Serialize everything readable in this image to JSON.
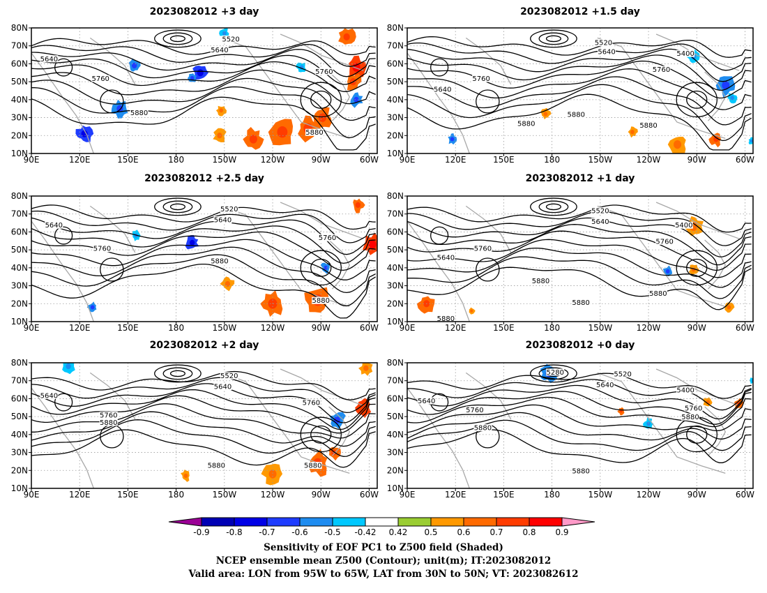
{
  "panels": [
    {
      "title": "2023082012  +3 day",
      "labels": [
        {
          "text": "5640",
          "lon": 101,
          "lat": 62
        },
        {
          "text": "5520",
          "lon": 214,
          "lat": 73
        },
        {
          "text": "5640",
          "lon": 207,
          "lat": 67
        },
        {
          "text": "5760",
          "lon": 272,
          "lat": 55
        },
        {
          "text": "5760",
          "lon": 133,
          "lat": 51
        },
        {
          "text": "5880",
          "lon": 157,
          "lat": 32
        },
        {
          "text": "5880",
          "lon": 266,
          "lat": 21
        }
      ]
    },
    {
      "title": "2023082012  +1.5 day",
      "labels": [
        {
          "text": "5520",
          "lon": 212,
          "lat": 71
        },
        {
          "text": "5640",
          "lon": 214,
          "lat": 66
        },
        {
          "text": "5400",
          "lon": 263,
          "lat": 65
        },
        {
          "text": "5760",
          "lon": 248,
          "lat": 56
        },
        {
          "text": "5760",
          "lon": 136,
          "lat": 51
        },
        {
          "text": "5640",
          "lon": 112,
          "lat": 45
        },
        {
          "text": "5880",
          "lon": 164,
          "lat": 26
        },
        {
          "text": "5880",
          "lon": 195,
          "lat": 31
        },
        {
          "text": "5880",
          "lon": 240,
          "lat": 25
        }
      ]
    },
    {
      "title": "2023082012  +2.5 day",
      "labels": [
        {
          "text": "5520",
          "lon": 213,
          "lat": 72
        },
        {
          "text": "5640",
          "lon": 209,
          "lat": 66
        },
        {
          "text": "5640",
          "lon": 104,
          "lat": 63
        },
        {
          "text": "5760",
          "lon": 134,
          "lat": 50
        },
        {
          "text": "5760",
          "lon": 274,
          "lat": 56
        },
        {
          "text": "5880",
          "lon": 207,
          "lat": 43
        },
        {
          "text": "5880",
          "lon": 270,
          "lat": 21
        }
      ]
    },
    {
      "title": "2023082012  +1 day",
      "labels": [
        {
          "text": "5520",
          "lon": 210,
          "lat": 71
        },
        {
          "text": "5640",
          "lon": 210,
          "lat": 65
        },
        {
          "text": "5400",
          "lon": 262,
          "lat": 63
        },
        {
          "text": "5760",
          "lon": 250,
          "lat": 54
        },
        {
          "text": "5760",
          "lon": 137,
          "lat": 50
        },
        {
          "text": "5640",
          "lon": 114,
          "lat": 45
        },
        {
          "text": "5880",
          "lon": 173,
          "lat": 32
        },
        {
          "text": "5880",
          "lon": 198,
          "lat": 20
        },
        {
          "text": "5880",
          "lon": 246,
          "lat": 25
        },
        {
          "text": "5880",
          "lon": 114,
          "lat": 11
        }
      ]
    },
    {
      "title": "2023082012  +2 day",
      "labels": [
        {
          "text": "5640",
          "lon": 101,
          "lat": 61
        },
        {
          "text": "5520",
          "lon": 213,
          "lat": 72
        },
        {
          "text": "5640",
          "lon": 209,
          "lat": 66
        },
        {
          "text": "5760",
          "lon": 264,
          "lat": 57
        },
        {
          "text": "5760",
          "lon": 138,
          "lat": 50
        },
        {
          "text": "5880",
          "lon": 138,
          "lat": 46
        },
        {
          "text": "5880",
          "lon": 205,
          "lat": 22
        },
        {
          "text": "5880",
          "lon": 265,
          "lat": 22
        }
      ]
    },
    {
      "title": "2023082012  +0 day",
      "labels": [
        {
          "text": "5280",
          "lon": 182,
          "lat": 74
        },
        {
          "text": "5520",
          "lon": 224,
          "lat": 73
        },
        {
          "text": "5640",
          "lon": 213,
          "lat": 67
        },
        {
          "text": "5400",
          "lon": 263,
          "lat": 64
        },
        {
          "text": "5640",
          "lon": 102,
          "lat": 58
        },
        {
          "text": "5760",
          "lon": 132,
          "lat": 53
        },
        {
          "text": "5760",
          "lon": 268,
          "lat": 54
        },
        {
          "text": "5880",
          "lon": 266,
          "lat": 49
        },
        {
          "text": "5880",
          "lon": 137,
          "lat": 43
        },
        {
          "text": "5880",
          "lon": 198,
          "lat": 19
        }
      ]
    }
  ],
  "axes": {
    "x_ticks": [
      "90E",
      "120E",
      "150E",
      "180",
      "150W",
      "120W",
      "90W",
      "60W"
    ],
    "y_ticks": [
      "80N",
      "70N",
      "60N",
      "50N",
      "40N",
      "30N",
      "20N",
      "10N"
    ],
    "lon_range": [
      90,
      305
    ],
    "lat_range": [
      10,
      80
    ],
    "x_tick_values": [
      90,
      120,
      150,
      180,
      210,
      240,
      270,
      300
    ],
    "y_tick_values": [
      80,
      70,
      60,
      50,
      40,
      30,
      20,
      10
    ]
  },
  "colorbar": {
    "ticks": [
      "-0.9",
      "-0.8",
      "-0.7",
      "-0.6",
      "-0.5",
      "-0.42",
      "0.42",
      "0.5",
      "0.6",
      "0.7",
      "0.8",
      "0.9"
    ],
    "colors": [
      "#9b0096",
      "#0000b4",
      "#0000e6",
      "#1e3cff",
      "#1e8cf0",
      "#00c8ff",
      "#ffffff",
      "#9acd32",
      "#ff9900",
      "#ff6a00",
      "#ff3c00",
      "#ff0000",
      "#ff9ac8"
    ]
  },
  "caption": {
    "line1": "Sensitivity of EOF PC1 to Z500 field (Shaded)",
    "line2": "NCEP ensemble mean Z500 (Contour); unit(m); IT:2023082012",
    "line3": "Valid area: LON from 95W to 65W, LAT from 30N to 50N; VT: 2023082612"
  },
  "chart_data": {
    "type": "heatmap",
    "panels": [
      "2023082012  +3 day",
      "2023082012  +1.5 day",
      "2023082012  +2.5 day",
      "2023082012  +1 day",
      "2023082012  +2 day",
      "2023082012  +0 day"
    ],
    "xlim": [
      "90E",
      "65W"
    ],
    "ylim": [
      "10N",
      "80N"
    ],
    "colorbar_levels": [
      -0.9,
      -0.8,
      -0.7,
      -0.6,
      -0.5,
      -0.42,
      0.42,
      0.5,
      0.6,
      0.7,
      0.8,
      0.9
    ],
    "contour_levels_labeled": [
      5280,
      5400,
      5520,
      5640,
      5760,
      5880
    ],
    "patches": [
      [
        {
          "lon": 292,
          "lat": 58,
          "r": 6,
          "v": 0.75
        },
        {
          "lon": 290,
          "lat": 50,
          "r": 5,
          "v": 0.65
        },
        {
          "lon": 271,
          "lat": 30,
          "r": 6,
          "v": 0.65
        },
        {
          "lon": 262,
          "lat": 24,
          "r": 7,
          "v": 0.6
        },
        {
          "lon": 246,
          "lat": 22,
          "r": 8,
          "v": 0.6
        },
        {
          "lon": 228,
          "lat": 18,
          "r": 6,
          "v": 0.6
        },
        {
          "lon": 208,
          "lat": 34,
          "r": 3,
          "v": 0.5
        },
        {
          "lon": 207,
          "lat": 20,
          "r": 4,
          "v": 0.5
        },
        {
          "lon": 195,
          "lat": 55,
          "r": 5,
          "v": -0.7
        },
        {
          "lon": 190,
          "lat": 52,
          "r": 3,
          "v": -0.6
        },
        {
          "lon": 154,
          "lat": 59,
          "r": 4,
          "v": -0.6
        },
        {
          "lon": 145,
          "lat": 35,
          "r": 5,
          "v": -0.55
        },
        {
          "lon": 123,
          "lat": 21,
          "r": 5,
          "v": -0.7
        },
        {
          "lon": 292,
          "lat": 40,
          "r": 4,
          "v": -0.6
        },
        {
          "lon": 258,
          "lat": 58,
          "r": 3,
          "v": -0.5
        },
        {
          "lon": 210,
          "lat": 77,
          "r": 3,
          "v": -0.5
        },
        {
          "lon": 286,
          "lat": 75,
          "r": 5,
          "v": 0.6
        }
      ],
      [
        {
          "lon": 288,
          "lat": 48,
          "r": 6,
          "v": -0.6
        },
        {
          "lon": 268,
          "lat": 64,
          "r": 4,
          "v": -0.5
        },
        {
          "lon": 292,
          "lat": 41,
          "r": 3,
          "v": -0.5
        },
        {
          "lon": 118,
          "lat": 18,
          "r": 3,
          "v": -0.55
        },
        {
          "lon": 258,
          "lat": 15,
          "r": 6,
          "v": 0.55
        },
        {
          "lon": 282,
          "lat": 18,
          "r": 4,
          "v": 0.6
        },
        {
          "lon": 176,
          "lat": 32,
          "r": 3,
          "v": 0.5
        },
        {
          "lon": 230,
          "lat": 22,
          "r": 3,
          "v": 0.5
        },
        {
          "lon": 304,
          "lat": 17,
          "r": 2,
          "v": -0.5
        }
      ],
      [
        {
          "lon": 302,
          "lat": 53,
          "r": 6,
          "v": 0.75
        },
        {
          "lon": 268,
          "lat": 22,
          "r": 8,
          "v": 0.65
        },
        {
          "lon": 240,
          "lat": 20,
          "r": 7,
          "v": 0.6
        },
        {
          "lon": 273,
          "lat": 40,
          "r": 3,
          "v": -0.6
        },
        {
          "lon": 190,
          "lat": 54,
          "r": 4,
          "v": -0.65
        },
        {
          "lon": 155,
          "lat": 58,
          "r": 3,
          "v": -0.5
        },
        {
          "lon": 128,
          "lat": 18,
          "r": 3,
          "v": -0.6
        },
        {
          "lon": 212,
          "lat": 31,
          "r": 4,
          "v": 0.5
        },
        {
          "lon": 293,
          "lat": 75,
          "r": 4,
          "v": 0.6
        }
      ],
      [
        {
          "lon": 268,
          "lat": 63,
          "r": 6,
          "v": 0.5
        },
        {
          "lon": 252,
          "lat": 38,
          "r": 3,
          "v": -0.6
        },
        {
          "lon": 102,
          "lat": 20,
          "r": 5,
          "v": 0.6
        },
        {
          "lon": 268,
          "lat": 39,
          "r": 3,
          "v": 0.5
        },
        {
          "lon": 290,
          "lat": 18,
          "r": 3,
          "v": 0.5
        },
        {
          "lon": 130,
          "lat": 16,
          "r": 2,
          "v": 0.5
        }
      ],
      [
        {
          "lon": 296,
          "lat": 55,
          "r": 5,
          "v": 0.7
        },
        {
          "lon": 280,
          "lat": 48,
          "r": 5,
          "v": -0.6
        },
        {
          "lon": 268,
          "lat": 24,
          "r": 7,
          "v": 0.6
        },
        {
          "lon": 240,
          "lat": 18,
          "r": 6,
          "v": 0.55
        },
        {
          "lon": 278,
          "lat": 30,
          "r": 4,
          "v": 0.6
        },
        {
          "lon": 113,
          "lat": 78,
          "r": 4,
          "v": -0.5
        },
        {
          "lon": 186,
          "lat": 17,
          "r": 3,
          "v": 0.5
        },
        {
          "lon": 298,
          "lat": 77,
          "r": 4,
          "v": 0.5
        }
      ],
      [
        {
          "lon": 178,
          "lat": 74,
          "r": 5,
          "v": -0.6
        },
        {
          "lon": 305,
          "lat": 70,
          "r": 2,
          "v": -0.5
        },
        {
          "lon": 277,
          "lat": 58,
          "r": 3,
          "v": 0.55
        },
        {
          "lon": 223,
          "lat": 53,
          "r": 2,
          "v": 0.6
        },
        {
          "lon": 240,
          "lat": 46,
          "r": 3,
          "v": -0.5
        },
        {
          "lon": 296,
          "lat": 57,
          "r": 3,
          "v": 0.6
        }
      ]
    ]
  }
}
